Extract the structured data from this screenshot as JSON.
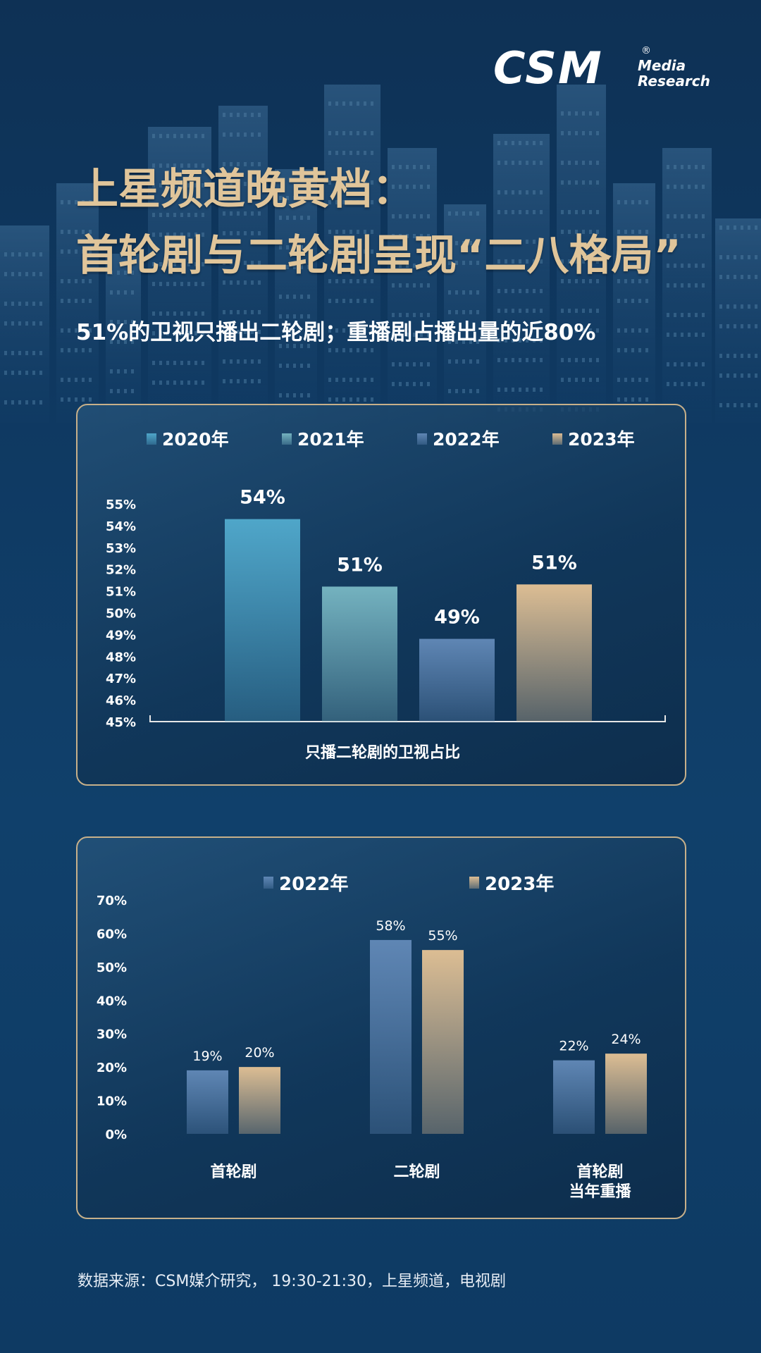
{
  "brand": {
    "logo_text": "CSM",
    "logo_sub_1": "Media",
    "logo_sub_2": "Research",
    "logo_mark": "®"
  },
  "header": {
    "title_line1": "上星频道晚黄档：",
    "title_line2": "首轮剧与二轮剧呈现“二八格局”",
    "subtitle": "51%的卫视只播出二轮剧；重播剧占播出量的近80%"
  },
  "colors": {
    "title_gold": "#e0c59a",
    "y2020": "#4fa6c9",
    "y2021": "#74b2bf",
    "y2022": "#5f86b4",
    "y2023": "#dcbd93",
    "card_border": "#c7b08a"
  },
  "chart_data": [
    {
      "type": "bar",
      "categories": [
        "只播二轮剧的卫视占比"
      ],
      "series": [
        {
          "name": "2020年",
          "values": [
            54
          ]
        },
        {
          "name": "2021年",
          "values": [
            51
          ]
        },
        {
          "name": "2022年",
          "values": [
            49
          ]
        },
        {
          "name": "2023年",
          "values": [
            51
          ]
        }
      ],
      "data_labels": [
        "54%",
        "51%",
        "49%",
        "51%"
      ],
      "value_estimates": [
        54.3,
        51.2,
        48.8,
        51.3
      ],
      "xlabel": "只播二轮剧的卫视占比",
      "ylabel": "",
      "ylim": [
        45,
        55
      ],
      "yticks": [
        "45%",
        "46%",
        "47%",
        "48%",
        "49%",
        "50%",
        "51%",
        "52%",
        "53%",
        "54%",
        "55%"
      ],
      "legend": "top",
      "grid": false
    },
    {
      "type": "bar",
      "categories": [
        "首轮剧",
        "二轮剧",
        "首轮剧\n当年重播"
      ],
      "series": [
        {
          "name": "2022年",
          "values": [
            19,
            58,
            22
          ],
          "labels": [
            "19%",
            "58%",
            "22%"
          ]
        },
        {
          "name": "2023年",
          "values": [
            20,
            55,
            24
          ],
          "labels": [
            "20%",
            "55%",
            "24%"
          ]
        }
      ],
      "xlabel": "",
      "ylabel": "",
      "ylim": [
        0,
        70
      ],
      "yticks": [
        "0%",
        "10%",
        "20%",
        "30%",
        "40%",
        "50%",
        "60%",
        "70%"
      ],
      "legend": "top",
      "grid": false
    }
  ],
  "footer": {
    "source": "数据来源：CSM媒介研究， 19:30-21:30，上星频道，电视剧"
  }
}
